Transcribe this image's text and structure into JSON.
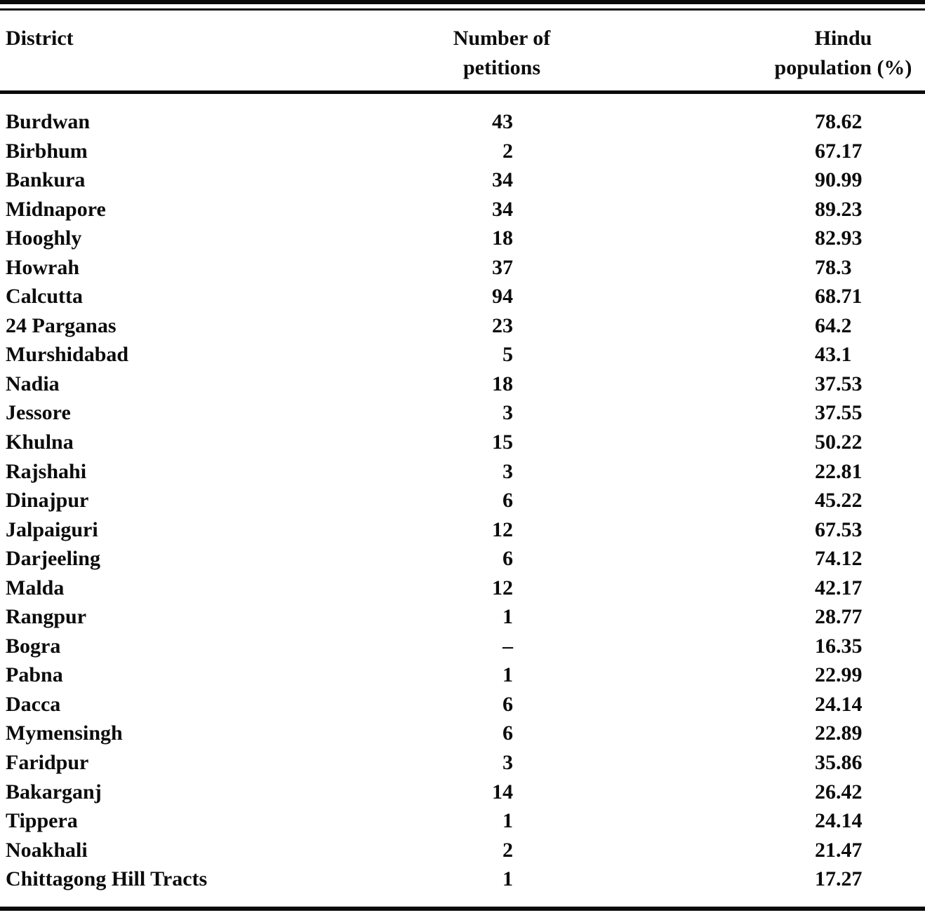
{
  "page": {
    "paper_color": "#ffffff",
    "ink_color": "#0c0c0c"
  },
  "table": {
    "header": {
      "district": "District",
      "petitions_lines": [
        "Number of",
        "petitions"
      ],
      "hindu_lines": [
        "Hindu",
        "population (%)"
      ]
    },
    "columns": [
      "District",
      "Number of petitions",
      "Hindu population (%)"
    ],
    "rows": [
      {
        "district": "Burdwan",
        "petitions": "43",
        "hindu_pct": "78.62"
      },
      {
        "district": "Birbhum",
        "petitions": "2",
        "hindu_pct": "67.17"
      },
      {
        "district": "Bankura",
        "petitions": "34",
        "hindu_pct": "90.99"
      },
      {
        "district": "Midnapore",
        "petitions": "34",
        "hindu_pct": "89.23"
      },
      {
        "district": "Hooghly",
        "petitions": "18",
        "hindu_pct": "82.93"
      },
      {
        "district": "Howrah",
        "petitions": "37",
        "hindu_pct": "78.3"
      },
      {
        "district": "Calcutta",
        "petitions": "94",
        "hindu_pct": "68.71"
      },
      {
        "district": "24 Parganas",
        "petitions": "23",
        "hindu_pct": "64.2"
      },
      {
        "district": "Murshidabad",
        "petitions": "5",
        "hindu_pct": "43.1"
      },
      {
        "district": "Nadia",
        "petitions": "18",
        "hindu_pct": "37.53"
      },
      {
        "district": "Jessore",
        "petitions": "3",
        "hindu_pct": "37.55"
      },
      {
        "district": "Khulna",
        "petitions": "15",
        "hindu_pct": "50.22"
      },
      {
        "district": "Rajshahi",
        "petitions": "3",
        "hindu_pct": "22.81"
      },
      {
        "district": "Dinajpur",
        "petitions": "6",
        "hindu_pct": "45.22"
      },
      {
        "district": "Jalpaiguri",
        "petitions": "12",
        "hindu_pct": "67.53"
      },
      {
        "district": "Darjeeling",
        "petitions": "6",
        "hindu_pct": "74.12"
      },
      {
        "district": "Malda",
        "petitions": "12",
        "hindu_pct": "42.17"
      },
      {
        "district": "Rangpur",
        "petitions": "1",
        "hindu_pct": "28.77"
      },
      {
        "district": "Bogra",
        "petitions": "–",
        "hindu_pct": "16.35"
      },
      {
        "district": "Pabna",
        "petitions": "1",
        "hindu_pct": "22.99"
      },
      {
        "district": "Dacca",
        "petitions": "6",
        "hindu_pct": "24.14"
      },
      {
        "district": "Mymensingh",
        "petitions": "6",
        "hindu_pct": "22.89"
      },
      {
        "district": "Faridpur",
        "petitions": "3",
        "hindu_pct": "35.86"
      },
      {
        "district": "Bakarganj",
        "petitions": "14",
        "hindu_pct": "26.42"
      },
      {
        "district": "Tippera",
        "petitions": "1",
        "hindu_pct": "24.14"
      },
      {
        "district": "Noakhali",
        "petitions": "2",
        "hindu_pct": "21.47"
      },
      {
        "district": "Chittagong Hill Tracts",
        "petitions": "1",
        "hindu_pct": "17.27"
      }
    ]
  }
}
